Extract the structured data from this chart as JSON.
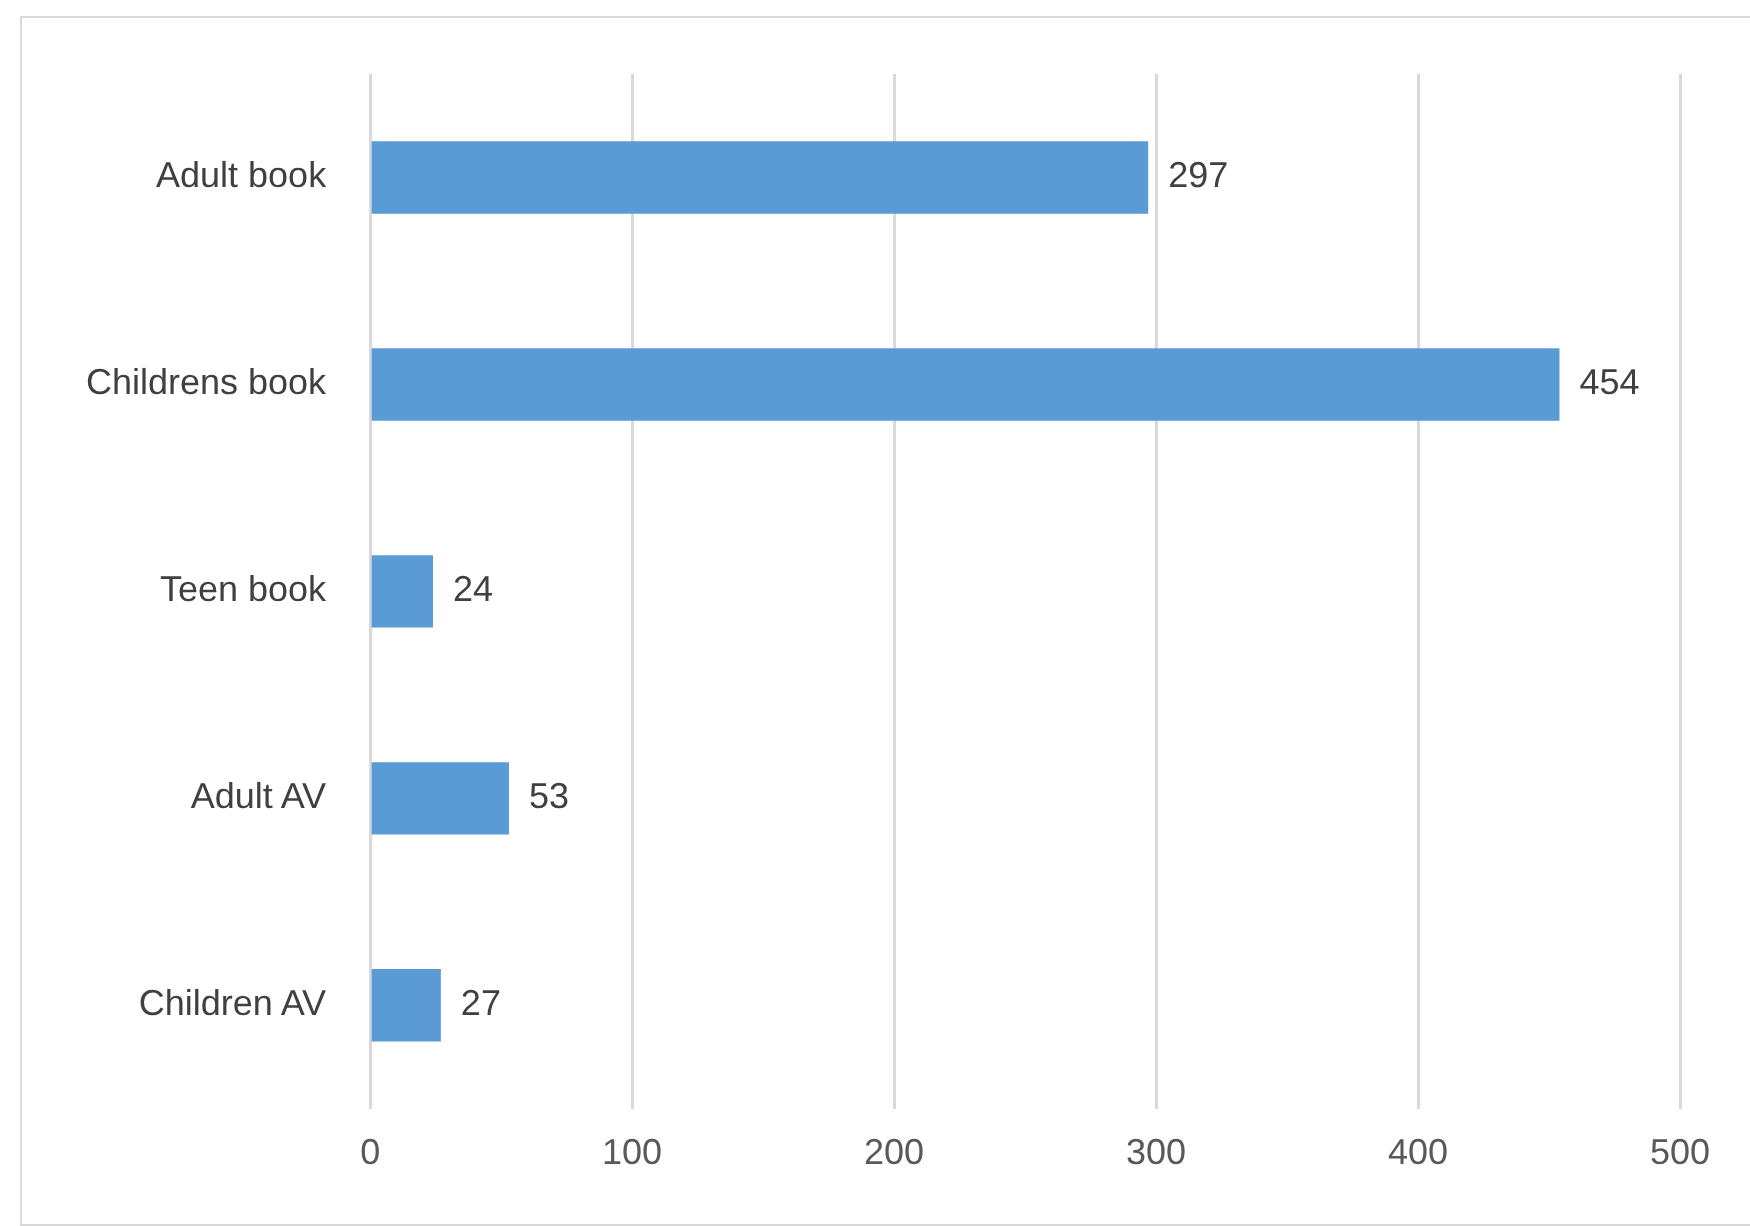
{
  "chart_data": {
    "type": "bar",
    "orientation": "horizontal",
    "categories": [
      "Adult book",
      "Childrens book",
      "Teen book",
      "Adult AV",
      "Children AV"
    ],
    "values": [
      297,
      454,
      24,
      53,
      27
    ],
    "color": "#5b9bd5",
    "xlim": [
      0,
      500
    ],
    "xticks": [
      0,
      100,
      200,
      300,
      400,
      500
    ],
    "grid": "x",
    "data_labels": true
  }
}
